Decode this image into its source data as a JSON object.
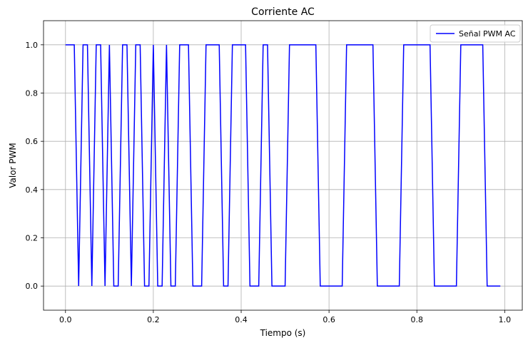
{
  "chart_data": {
    "type": "line",
    "title": "Corriente AC",
    "xlabel": "Tiempo (s)",
    "ylabel": "Valor PWM",
    "xlim": [
      -0.05,
      1.04
    ],
    "ylim": [
      -0.1,
      1.1
    ],
    "xticks": [
      0.0,
      0.2,
      0.4,
      0.6,
      0.8,
      1.0
    ],
    "xtick_labels": [
      "0.0",
      "0.2",
      "0.4",
      "0.6",
      "0.8",
      "1.0"
    ],
    "yticks": [
      0.0,
      0.2,
      0.4,
      0.6,
      0.8,
      1.0
    ],
    "ytick_labels": [
      "0.0",
      "0.2",
      "0.4",
      "0.6",
      "0.8",
      "1.0"
    ],
    "grid": true,
    "legend_position": "top-right",
    "series": [
      {
        "name": "Señal PWM AC",
        "color": "#0000ff",
        "x": [
          0.0,
          0.01,
          0.02,
          0.03,
          0.04,
          0.05,
          0.06,
          0.07,
          0.08,
          0.09,
          0.1,
          0.11,
          0.12,
          0.13,
          0.14,
          0.15,
          0.16,
          0.17,
          0.18,
          0.19,
          0.2,
          0.21,
          0.22,
          0.23,
          0.24,
          0.25,
          0.26,
          0.27,
          0.28,
          0.29,
          0.3,
          0.31,
          0.32,
          0.33,
          0.34,
          0.35,
          0.36,
          0.37,
          0.38,
          0.39,
          0.4,
          0.41,
          0.42,
          0.43,
          0.44,
          0.45,
          0.46,
          0.47,
          0.48,
          0.49,
          0.5,
          0.51,
          0.52,
          0.53,
          0.54,
          0.55,
          0.56,
          0.57,
          0.58,
          0.59,
          0.6,
          0.61,
          0.62,
          0.63,
          0.64,
          0.65,
          0.66,
          0.67,
          0.68,
          0.69,
          0.7,
          0.71,
          0.72,
          0.73,
          0.74,
          0.75,
          0.76,
          0.77,
          0.78,
          0.79,
          0.8,
          0.81,
          0.82,
          0.83,
          0.84,
          0.85,
          0.86,
          0.87,
          0.88,
          0.89,
          0.9,
          0.91,
          0.92,
          0.93,
          0.94,
          0.95,
          0.96,
          0.97,
          0.98,
          0.99
        ],
        "values": [
          1,
          1,
          1,
          0,
          1,
          1,
          0,
          1,
          1,
          0,
          1,
          0,
          0,
          1,
          1,
          0,
          1,
          1,
          0,
          0,
          1,
          0,
          0,
          1,
          0,
          0,
          1,
          1,
          1,
          0,
          0,
          0,
          1,
          1,
          1,
          1,
          0,
          0,
          1,
          1,
          1,
          1,
          0,
          0,
          0,
          1,
          1,
          0,
          0,
          0,
          0,
          1,
          1,
          1,
          1,
          1,
          1,
          1,
          0,
          0,
          0,
          0,
          0,
          0,
          1,
          1,
          1,
          1,
          1,
          1,
          1,
          0,
          0,
          0,
          0,
          0,
          0,
          1,
          1,
          1,
          1,
          1,
          1,
          1,
          0,
          0,
          0,
          0,
          0,
          0,
          1,
          1,
          1,
          1,
          1,
          1,
          0,
          0,
          0,
          0
        ]
      }
    ]
  }
}
